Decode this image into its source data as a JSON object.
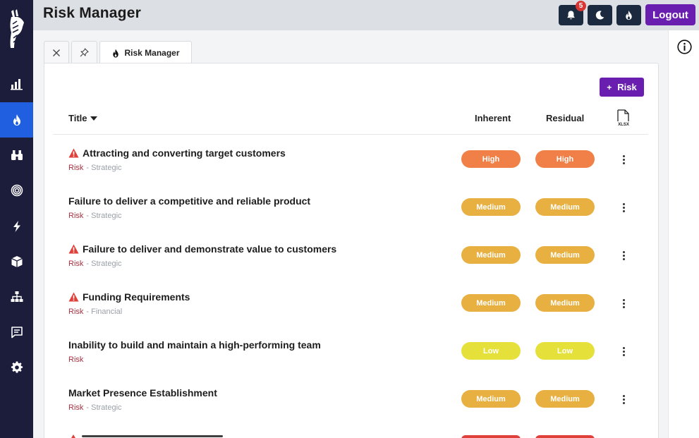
{
  "header": {
    "title": "Risk Manager",
    "notification_count": "5",
    "logout_label": "Logout"
  },
  "sidebar": {
    "items": [
      {
        "icon": "bar-chart-icon",
        "active": false
      },
      {
        "icon": "fire-icon",
        "active": true
      },
      {
        "icon": "binoculars-icon",
        "active": false
      },
      {
        "icon": "target-icon",
        "active": false
      },
      {
        "icon": "lightning-icon",
        "active": false
      },
      {
        "icon": "box-icon",
        "active": false
      },
      {
        "icon": "org-chart-icon",
        "active": false
      },
      {
        "icon": "chat-icon",
        "active": false
      },
      {
        "icon": "gear-icon",
        "active": false
      }
    ]
  },
  "tabs": {
    "active_label": "Risk Manager"
  },
  "toolbar": {
    "add_label": "Risk",
    "add_plus": "+"
  },
  "columns": {
    "title": "Title",
    "inherent": "Inherent",
    "residual": "Residual"
  },
  "rows": [
    {
      "title": "Attracting and converting target customers",
      "warning": true,
      "type": "Risk",
      "category": "- Strategic",
      "inherent": "High",
      "residual": "High"
    },
    {
      "title": "Failure to deliver a competitive and reliable product",
      "warning": false,
      "type": "Risk",
      "category": "- Strategic",
      "inherent": "Medium",
      "residual": "Medium"
    },
    {
      "title": "Failure to deliver and demonstrate value to customers",
      "warning": true,
      "type": "Risk",
      "category": "- Strategic",
      "inherent": "Medium",
      "residual": "Medium"
    },
    {
      "title": "Funding Requirements",
      "warning": true,
      "type": "Risk",
      "category": "- Financial",
      "inherent": "Medium",
      "residual": "Medium"
    },
    {
      "title": "Inability to build and maintain a high-performing team",
      "warning": false,
      "type": "Risk",
      "category": "",
      "inherent": "Low",
      "residual": "Low"
    },
    {
      "title": "Market Presence Establishment",
      "warning": false,
      "type": "Risk",
      "category": "- Strategic",
      "inherent": "Medium",
      "residual": "Medium"
    }
  ],
  "colors": {
    "sidebar": "#1b1d3a",
    "sidebar_active": "#1f5fe0",
    "brand_purple": "#6a1eb0",
    "high": "#f08048",
    "medium": "#e8b040",
    "low": "#e6e03a",
    "warning": "#e0403a",
    "risk_label": "#a4303f"
  }
}
